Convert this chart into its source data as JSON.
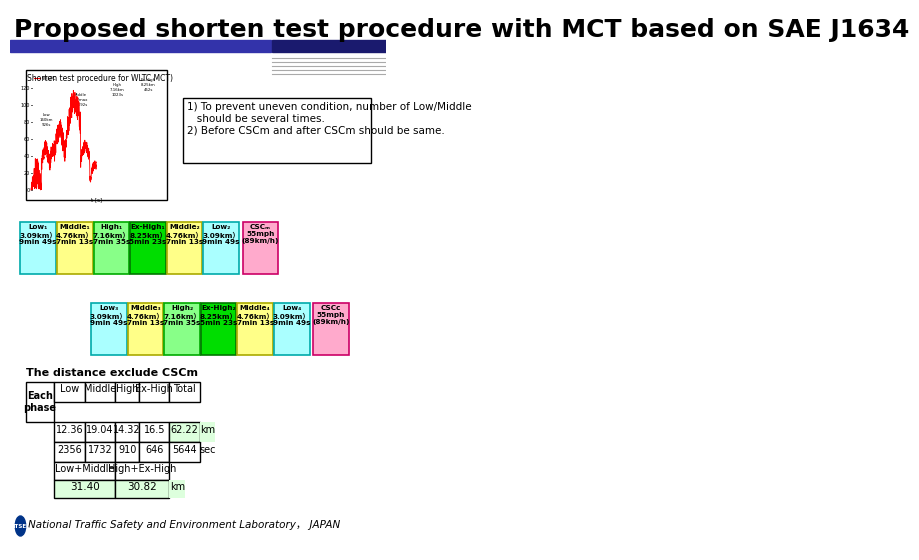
{
  "title": "Proposed shorten test procedure with MCT based on SAE J1634",
  "title_fontsize": 18,
  "bg_color": "#ffffff",
  "header_bar_color1": "#3333aa",
  "header_bar_color2": "#1a1a6e",
  "graph_title": "Shorten test procedure for WLTC MCT)",
  "note_text": "1) To prevent uneven condition, number of Low/Middle\n   should be several times.\n2) Before CSCm and after CSCm should be same.",
  "row1_phases": [
    {
      "label": "Low₁\n3.09km）\n9min 49s",
      "color": "#aaffff",
      "border": "#00aaaa"
    },
    {
      "label": "Middle₁\n4.76km）\n7min 13s",
      "color": "#ffff88",
      "border": "#aaaa00"
    },
    {
      "label": "High₁\n7.16km）\n7min 35s",
      "color": "#88ff88",
      "border": "#00aa00"
    },
    {
      "label": "Ex-High₁\n8.25km）\n5min 23s",
      "color": "#00dd00",
      "border": "#007700"
    },
    {
      "label": "Middle₂\n4.76km）\n7min 13s",
      "color": "#ffff88",
      "border": "#aaaa00"
    },
    {
      "label": "Low₂\n3.09km）\n9min 49s",
      "color": "#aaffff",
      "border": "#00aaaa"
    },
    {
      "label": "CSCₘ\n55mph\n(89km/h)",
      "color": "#ffaacc",
      "border": "#cc0066"
    }
  ],
  "row2_phases": [
    {
      "label": "Low₃\n3.09km）\n9min 49s",
      "color": "#aaffff",
      "border": "#00aaaa"
    },
    {
      "label": "Middle₃\n4.76km）\n7min 13s",
      "color": "#ffff88",
      "border": "#aaaa00"
    },
    {
      "label": "High₂\n7.16km）\n7min 35s",
      "color": "#88ff88",
      "border": "#00aa00"
    },
    {
      "label": "Ex-High₂\n8.25km）\n5min 23s",
      "color": "#00dd00",
      "border": "#007700"
    },
    {
      "label": "Middle₄\n4.76km）\n7min 13s",
      "color": "#ffff88",
      "border": "#aaaa00"
    },
    {
      "label": "Low₄\n3.09km）\n9min 49s",
      "color": "#aaffff",
      "border": "#00aaaa"
    },
    {
      "label": "CSCᴄ\n55mph\n(89km/h)",
      "color": "#ffaacc",
      "border": "#cc0066"
    }
  ],
  "table_title": "The distance exclude CSCm",
  "table_headers": [
    "",
    "Low",
    "Middle",
    "High",
    "Ex-High",
    "Total",
    ""
  ],
  "table_row1_label": "Each\nphase",
  "table_data": [
    [
      "12.36",
      "19.04",
      "14.32",
      "16.5",
      "62.22",
      "km"
    ],
    [
      "2356",
      "1732",
      "910",
      "646",
      "5644",
      "sec"
    ]
  ],
  "table_combined": [
    [
      "Low+Middle",
      "",
      "High+Ex-High",
      "",
      "",
      "km"
    ],
    [
      "31.40",
      "",
      "30.82",
      "",
      "",
      "km"
    ]
  ],
  "footer_text": "National Traffic Safety and Environment Laboratory， JAPAN",
  "ntsel_color": "#cc0000"
}
